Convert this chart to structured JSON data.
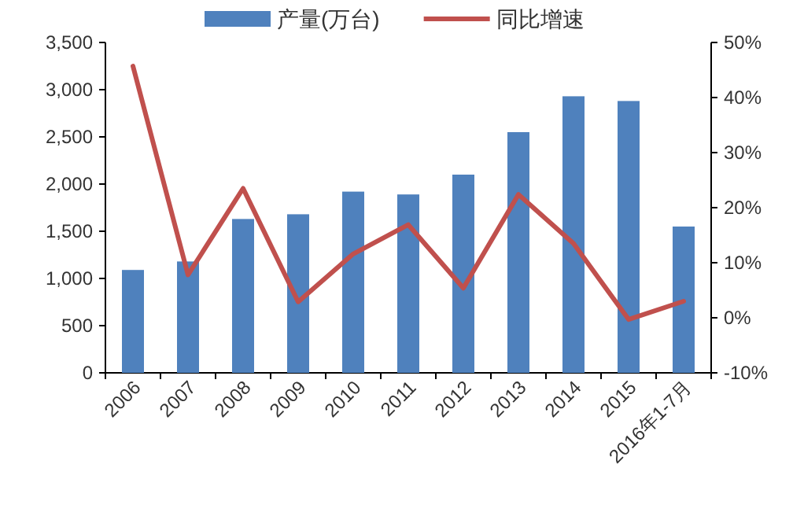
{
  "chart_data": {
    "type": "bar",
    "categories": [
      "2006",
      "2007",
      "2008",
      "2009",
      "2010",
      "2011",
      "2012",
      "2013",
      "2014",
      "2015",
      "2016年1-7月"
    ],
    "series": [
      {
        "name": "产量(万台)",
        "color": "#4f81bd",
        "values": [
          1090,
          1180,
          1630,
          1680,
          1920,
          1890,
          2100,
          2550,
          2930,
          2880,
          1550
        ]
      },
      {
        "name": "同比增速",
        "type": "line",
        "axis": "y2",
        "color": "#c0504d",
        "values": [
          45.7,
          7.8,
          23.5,
          2.9,
          11.6,
          16.9,
          5.4,
          22.4,
          13.5,
          -0.3,
          3.0
        ]
      }
    ],
    "ylim": [
      0,
      3500
    ],
    "yticks": [
      {
        "value": 0,
        "label": "0"
      },
      {
        "value": 500,
        "label": "500"
      },
      {
        "value": 1000,
        "label": "1,000"
      },
      {
        "value": 1500,
        "label": "1,500"
      },
      {
        "value": 2000,
        "label": "2,000"
      },
      {
        "value": 2500,
        "label": "2,500"
      },
      {
        "value": 3000,
        "label": "3,000"
      },
      {
        "value": 3500,
        "label": "3,500"
      }
    ],
    "y2lim": [
      -10,
      50
    ],
    "y2ticks": [
      {
        "value": -10,
        "label": "-10%"
      },
      {
        "value": 0,
        "label": "0%"
      },
      {
        "value": 10,
        "label": "10%"
      },
      {
        "value": 20,
        "label": "20%"
      },
      {
        "value": 30,
        "label": "30%"
      },
      {
        "value": 40,
        "label": "40%"
      },
      {
        "value": 50,
        "label": "50%"
      }
    ],
    "legend": "top",
    "grid": false
  }
}
